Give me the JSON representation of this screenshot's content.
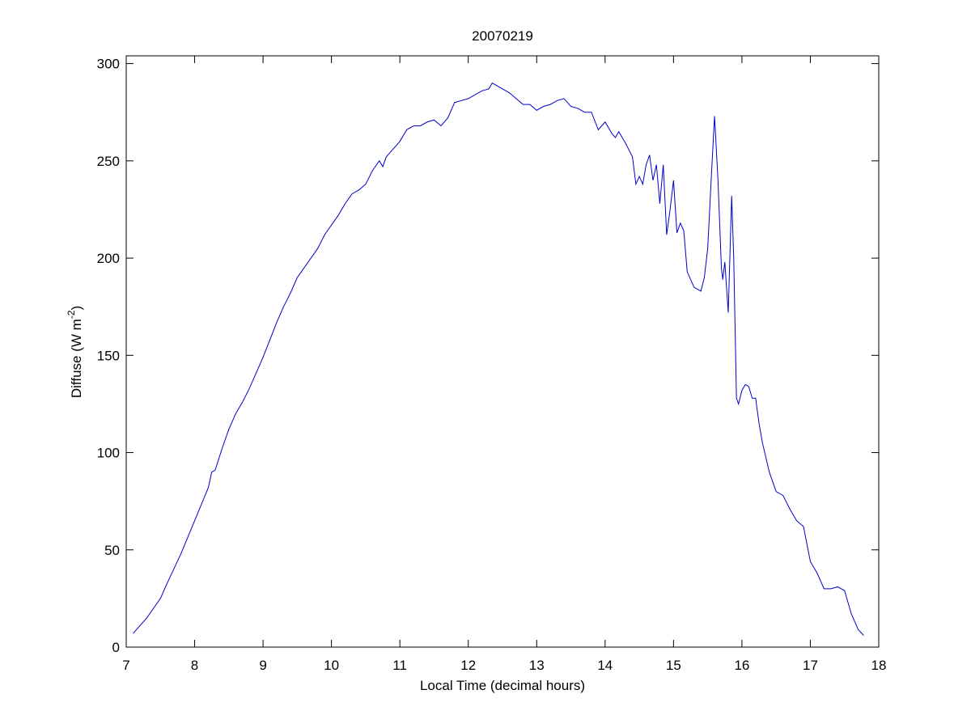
{
  "chart_data": {
    "type": "line",
    "title": "20070219",
    "xlabel": "Local Time (decimal hours)",
    "ylabel": [
      "Diffuse (W m",
      "-2",
      ")"
    ],
    "xlim": [
      7,
      18
    ],
    "ylim": [
      0,
      304
    ],
    "xticks": [
      7,
      8,
      9,
      10,
      11,
      12,
      13,
      14,
      15,
      16,
      17,
      18
    ],
    "yticks": [
      0,
      50,
      100,
      150,
      200,
      250,
      300
    ],
    "grid": false,
    "series": [
      {
        "color": "#0000cc",
        "x": [
          7.1,
          7.3,
          7.5,
          7.6,
          7.8,
          8.0,
          8.2,
          8.25,
          8.3,
          8.4,
          8.5,
          8.6,
          8.7,
          8.8,
          8.9,
          9.0,
          9.1,
          9.2,
          9.3,
          9.4,
          9.5,
          9.6,
          9.7,
          9.8,
          9.9,
          10.0,
          10.1,
          10.2,
          10.3,
          10.4,
          10.5,
          10.6,
          10.7,
          10.75,
          10.8,
          10.9,
          11.0,
          11.1,
          11.2,
          11.3,
          11.4,
          11.5,
          11.6,
          11.7,
          11.8,
          11.9,
          12.0,
          12.1,
          12.2,
          12.3,
          12.35,
          12.4,
          12.5,
          12.6,
          12.7,
          12.8,
          12.9,
          13.0,
          13.1,
          13.2,
          13.3,
          13.4,
          13.5,
          13.6,
          13.7,
          13.8,
          13.9,
          14.0,
          14.1,
          14.15,
          14.2,
          14.3,
          14.4,
          14.45,
          14.5,
          14.55,
          14.6,
          14.65,
          14.7,
          14.75,
          14.8,
          14.85,
          14.9,
          14.95,
          15.0,
          15.05,
          15.1,
          15.15,
          15.2,
          15.3,
          15.4,
          15.45,
          15.5,
          15.55,
          15.6,
          15.65,
          15.7,
          15.72,
          15.75,
          15.8,
          15.85,
          15.88,
          15.92,
          15.95,
          16.0,
          16.05,
          16.1,
          16.15,
          16.2,
          16.25,
          16.3,
          16.4,
          16.5,
          16.6,
          16.7,
          16.8,
          16.9,
          17.0,
          17.1,
          17.2,
          17.3,
          17.4,
          17.5,
          17.6,
          17.7,
          17.78
        ],
        "values": [
          7,
          15,
          25,
          33,
          48,
          65,
          82,
          90,
          91,
          102,
          112,
          120,
          126,
          133,
          141,
          149,
          158,
          167,
          175,
          182,
          190,
          195,
          200,
          205,
          212,
          217,
          222,
          228,
          233,
          235,
          238,
          245,
          250,
          247,
          252,
          256,
          260,
          266,
          268,
          268,
          270,
          271,
          268,
          272,
          280,
          281,
          282,
          284,
          286,
          287,
          290,
          289,
          287,
          285,
          282,
          279,
          279,
          276,
          278,
          279,
          281,
          282,
          278,
          277,
          275,
          275,
          266,
          270,
          264,
          262,
          265,
          259,
          252,
          238,
          242,
          238,
          248,
          253,
          240,
          248,
          228,
          248,
          212,
          225,
          240,
          213,
          218,
          214,
          193,
          185,
          183,
          190,
          205,
          240,
          273,
          240,
          195,
          189,
          198,
          172,
          232,
          200,
          128,
          125,
          132,
          135,
          134,
          128,
          128,
          115,
          105,
          90,
          80,
          78,
          71,
          65,
          62,
          44,
          38,
          30,
          30,
          31,
          29,
          17,
          9,
          6
        ]
      }
    ]
  }
}
